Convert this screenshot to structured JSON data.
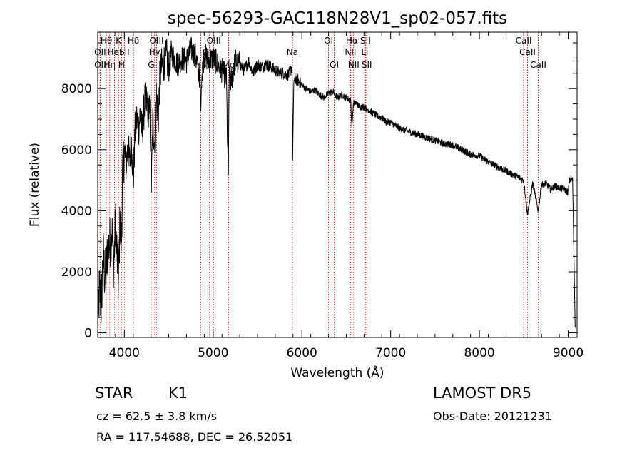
{
  "chart_data": {
    "type": "line",
    "title": "spec-56293-GAC118N28V1_sp02-057.fits",
    "xlabel": "Wavelength (Å)",
    "ylabel": "Flux (relative)",
    "xlim": [
      3700,
      9100
    ],
    "ylim": [
      -150,
      9850
    ],
    "xticks": [
      4000,
      5000,
      6000,
      7000,
      8000,
      9000
    ],
    "xtick_labels": [
      "4000",
      "5000",
      "6000",
      "7000",
      "8000",
      "9000"
    ],
    "yticks": [
      0,
      2000,
      4000,
      6000,
      8000
    ],
    "ytick_labels": [
      "0",
      "2000",
      "4000",
      "6000",
      "8000"
    ],
    "grid": false,
    "line_color": "#000000",
    "marker_color": "#c00000",
    "spectrum": {
      "x": [
        3700,
        3720,
        3740,
        3760,
        3780,
        3800,
        3820,
        3840,
        3860,
        3880,
        3900,
        3920,
        3933,
        3950,
        3968,
        3980,
        4000,
        4020,
        4040,
        4060,
        4080,
        4102,
        4120,
        4140,
        4160,
        4180,
        4200,
        4230,
        4260,
        4290,
        4305,
        4320,
        4340,
        4360,
        4383,
        4400,
        4420,
        4450,
        4480,
        4500,
        4530,
        4560,
        4600,
        4650,
        4700,
        4750,
        4800,
        4861,
        4900,
        4957,
        5000,
        5050,
        5100,
        5150,
        5170,
        5183,
        5200,
        5250,
        5300,
        5350,
        5400,
        5450,
        5500,
        5550,
        5600,
        5650,
        5700,
        5750,
        5800,
        5850,
        5890,
        5896,
        5910,
        5950,
        6000,
        6050,
        6100,
        6150,
        6200,
        6250,
        6300,
        6350,
        6400,
        6450,
        6500,
        6550,
        6563,
        6580,
        6600,
        6650,
        6700,
        6750,
        6800,
        6850,
        6900,
        6950,
        7000,
        7100,
        7200,
        7300,
        7400,
        7500,
        7600,
        7700,
        7800,
        7900,
        8000,
        8100,
        8200,
        8300,
        8400,
        8498,
        8542,
        8600,
        8662,
        8700,
        8750,
        8800,
        8850,
        8900,
        8950,
        9000,
        9010,
        9030,
        9050,
        9080
      ],
      "y": [
        0,
        1500,
        800,
        2600,
        1800,
        2200,
        2800,
        3000,
        3400,
        2200,
        3600,
        2400,
        1500,
        3700,
        3000,
        5200,
        6000,
        5500,
        6100,
        5600,
        6300,
        5000,
        6600,
        7000,
        6700,
        7200,
        6500,
        7600,
        7500,
        7100,
        4800,
        7000,
        6200,
        7800,
        7000,
        8400,
        8700,
        8900,
        9000,
        8600,
        9200,
        9000,
        8800,
        9000,
        8900,
        9300,
        9100,
        8200,
        9100,
        8900,
        9000,
        8800,
        8600,
        8300,
        4900,
        8700,
        8200,
        8900,
        8800,
        8600,
        8900,
        8500,
        8800,
        8700,
        8800,
        8700,
        8600,
        8500,
        8500,
        8450,
        8700,
        5800,
        8300,
        8300,
        8100,
        8000,
        7900,
        7950,
        7800,
        7700,
        7850,
        7900,
        7700,
        7800,
        7700,
        7600,
        6800,
        7500,
        7550,
        7400,
        7400,
        7300,
        7200,
        7100,
        7050,
        6900,
        6900,
        6700,
        6600,
        6500,
        6400,
        6300,
        6200,
        6150,
        6000,
        5850,
        5800,
        5600,
        5450,
        5300,
        5150,
        5000,
        3900,
        4900,
        4000,
        4850,
        4900,
        4700,
        4800,
        4750,
        4700,
        4600,
        4950,
        5050,
        5000,
        0
      ],
      "absorption_features": [
        {
          "x": 4861,
          "y": 7200,
          "w": 8
        },
        {
          "x": 6563,
          "y": 6900,
          "w": 10
        }
      ]
    },
    "line_markers": [
      {
        "wavelength": 3797,
        "label": "Hθ",
        "row": 1
      },
      {
        "wavelength": 3727,
        "label": "OII",
        "row": 2
      },
      {
        "wavelength": 3727,
        "label": "OII",
        "row": 3
      },
      {
        "wavelength": 3835,
        "label": "Hη",
        "row": 3
      },
      {
        "wavelength": 3889,
        "label": "HeI",
        "row": 2
      },
      {
        "wavelength": 3934,
        "label": "K",
        "row": 1
      },
      {
        "wavelength": 3968,
        "label": "H",
        "row": 3
      },
      {
        "wavelength": 4000,
        "label": "SII",
        "row": 2
      },
      {
        "wavelength": 4102,
        "label": "Hδ",
        "row": 1
      },
      {
        "wavelength": 4303,
        "label": "G",
        "row": 3
      },
      {
        "wavelength": 4341,
        "label": "Hγ",
        "row": 2
      },
      {
        "wavelength": 4363,
        "label": "OIII",
        "row": 1
      },
      {
        "wavelength": 4861,
        "label": "Hβ",
        "row": 3
      },
      {
        "wavelength": 4959,
        "label": "OIII",
        "row": 2
      },
      {
        "wavelength": 5007,
        "label": "OIII",
        "row": 1
      },
      {
        "wavelength": 5175,
        "label": "Mg",
        "row": 3
      },
      {
        "wavelength": 5893,
        "label": "Na",
        "row": 2
      },
      {
        "wavelength": 6300,
        "label": "OI",
        "row": 1
      },
      {
        "wavelength": 6364,
        "label": "OI",
        "row": 3
      },
      {
        "wavelength": 6548,
        "label": "NII",
        "row": 2
      },
      {
        "wavelength": 6563,
        "label": "Hα",
        "row": 1
      },
      {
        "wavelength": 6583,
        "label": "NII",
        "row": 3
      },
      {
        "wavelength": 6708,
        "label": "Li",
        "row": 2
      },
      {
        "wavelength": 6716,
        "label": "SII",
        "row": 1
      },
      {
        "wavelength": 6731,
        "label": "SII",
        "row": 3
      },
      {
        "wavelength": 8498,
        "label": "CaII",
        "row": 1
      },
      {
        "wavelength": 8542,
        "label": "CaII",
        "row": 2
      },
      {
        "wavelength": 8662,
        "label": "CaII",
        "row": 3
      }
    ]
  },
  "info": {
    "object_class": "STAR",
    "subclass": "K1",
    "redshift_line": "cz = 62.5 ± 3.8 km/s",
    "coords_line": "RA = 117.54688, DEC =  26.52051",
    "survey": "LAMOST  DR5",
    "obs_date": "Obs-Date: 20121231"
  }
}
